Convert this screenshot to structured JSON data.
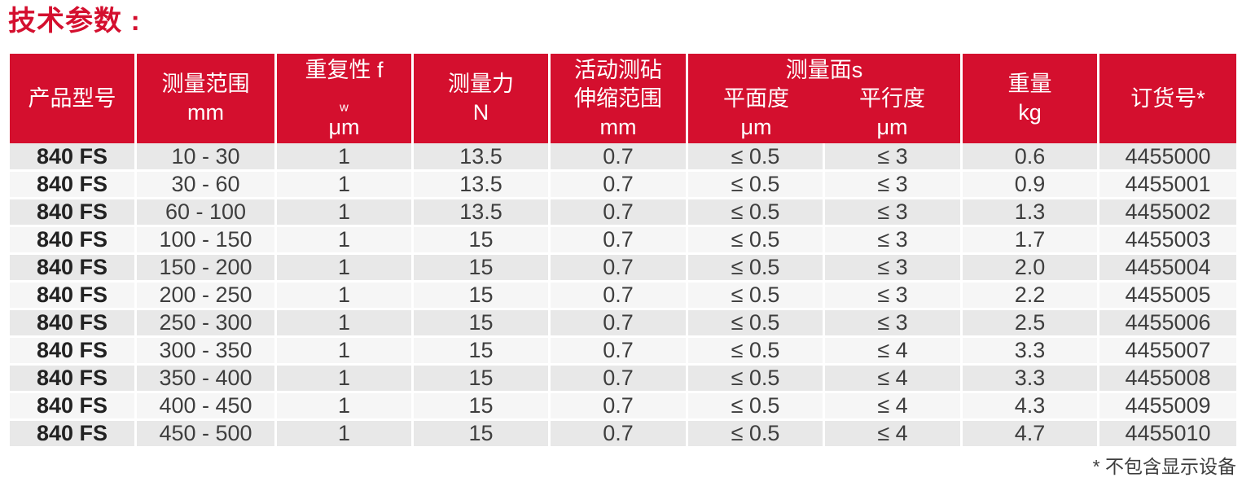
{
  "title": "技术参数 :",
  "footnote": "* 不包含显示设备",
  "colors": {
    "brand_red": "#D40F2E",
    "row_stripe": "#E8E8E8",
    "row_base": "#F6F6F6",
    "text_dark": "#3E3E3E",
    "header_text": "#FFFFFF"
  },
  "table": {
    "column_keys": [
      "product-model",
      "measuring-range",
      "repeatability",
      "measuring-force",
      "anvil-travel",
      "flatness",
      "parallelism",
      "weight",
      "order-number"
    ],
    "headers": {
      "product_model": "产品型号",
      "measuring_range": "测量范围",
      "measuring_range_unit": "mm",
      "repeatability": "重复性 f",
      "repeatability_sub": "w",
      "repeatability_unit": "μm",
      "measuring_force": "测量力",
      "measuring_force_unit": "N",
      "anvil_line1": "活动测砧",
      "anvil_line2": "伸缩范围",
      "anvil_unit": "mm",
      "faces_title": "测量面s",
      "flatness": "平面度",
      "flatness_unit": "μm",
      "parallelism": "平行度",
      "parallelism_unit": "μm",
      "weight": "重量",
      "weight_unit": "kg",
      "order_number": "订货号*"
    },
    "rows": [
      [
        "840 FS",
        "10 - 30",
        "1",
        "13.5",
        "0.7",
        "≤ 0.5",
        "≤ 3",
        "0.6",
        "4455000"
      ],
      [
        "840 FS",
        "30 - 60",
        "1",
        "13.5",
        "0.7",
        "≤ 0.5",
        "≤ 3",
        "0.9",
        "4455001"
      ],
      [
        "840 FS",
        "60 - 100",
        "1",
        "13.5",
        "0.7",
        "≤ 0.5",
        "≤ 3",
        "1.3",
        "4455002"
      ],
      [
        "840 FS",
        "100 - 150",
        "1",
        "15",
        "0.7",
        "≤ 0.5",
        "≤ 3",
        "1.7",
        "4455003"
      ],
      [
        "840 FS",
        "150 - 200",
        "1",
        "15",
        "0.7",
        "≤ 0.5",
        "≤ 3",
        "2.0",
        "4455004"
      ],
      [
        "840 FS",
        "200 - 250",
        "1",
        "15",
        "0.7",
        "≤ 0.5",
        "≤ 3",
        "2.2",
        "4455005"
      ],
      [
        "840 FS",
        "250 - 300",
        "1",
        "15",
        "0.7",
        "≤ 0.5",
        "≤ 3",
        "2.5",
        "4455006"
      ],
      [
        "840 FS",
        "300 - 350",
        "1",
        "15",
        "0.7",
        "≤ 0.5",
        "≤ 4",
        "3.3",
        "4455007"
      ],
      [
        "840 FS",
        "350 - 400",
        "1",
        "15",
        "0.7",
        "≤ 0.5",
        "≤ 4",
        "3.3",
        "4455008"
      ],
      [
        "840 FS",
        "400 - 450",
        "1",
        "15",
        "0.7",
        "≤ 0.5",
        "≤ 4",
        "4.3",
        "4455009"
      ],
      [
        "840 FS",
        "450 - 500",
        "1",
        "15",
        "0.7",
        "≤ 0.5",
        "≤ 4",
        "4.7",
        "4455010"
      ]
    ]
  }
}
